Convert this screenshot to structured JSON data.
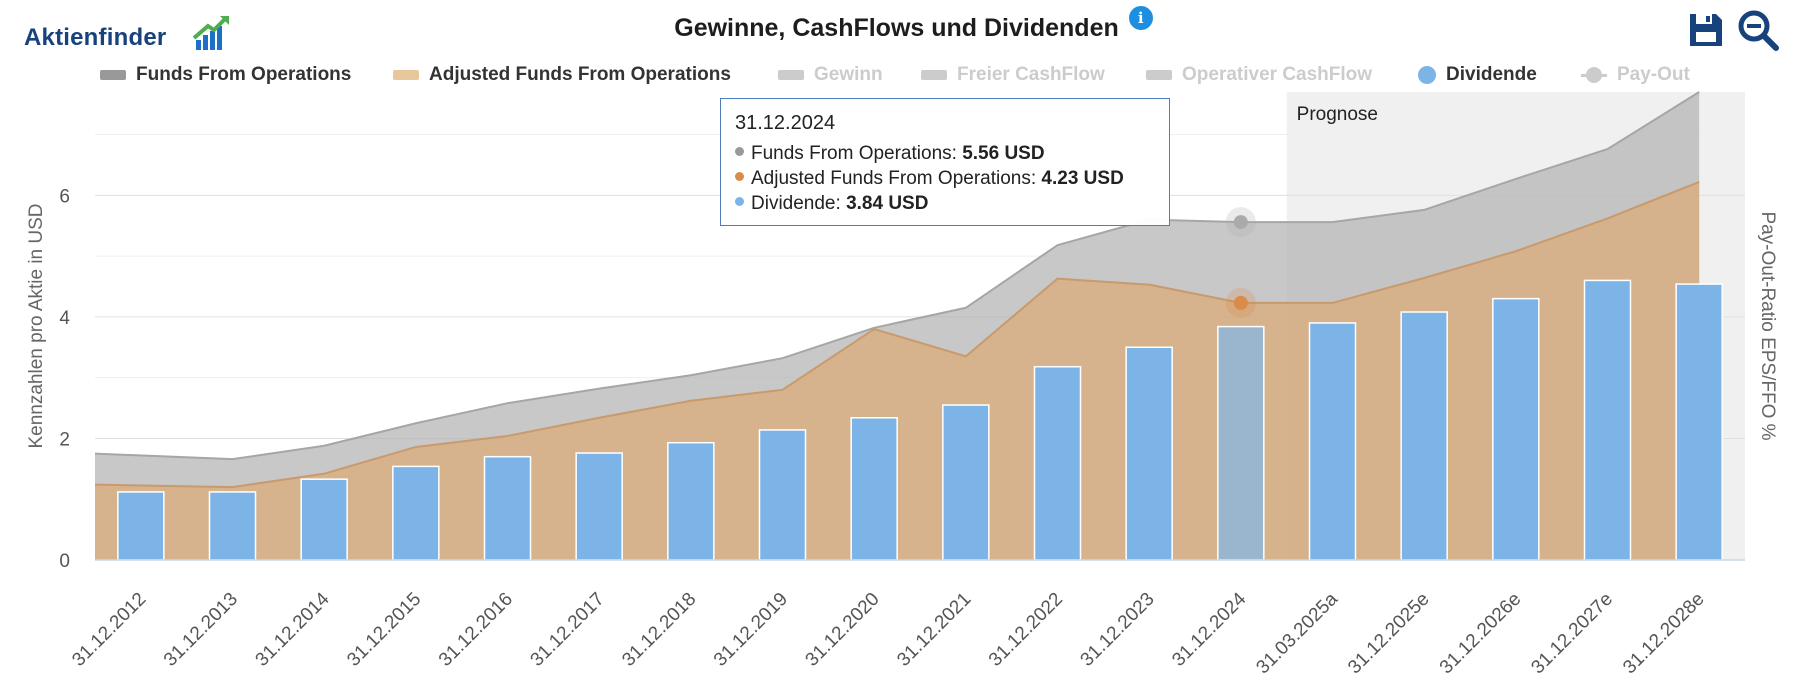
{
  "brand": {
    "name": "Aktienfinder"
  },
  "header": {
    "title": "Gewinne, CashFlows und Dividenden"
  },
  "toolbar": {
    "save_icon": "save-icon",
    "zoom_icon": "zoom-out-icon",
    "info_icon": "info-icon"
  },
  "legend": [
    {
      "label": "Funds From Operations",
      "symbol": "area",
      "color": "#999999",
      "active": true
    },
    {
      "label": "Adjusted Funds From Operations",
      "symbol": "area",
      "color": "#e9c79d",
      "active": true
    },
    {
      "label": "Gewinn",
      "symbol": "area",
      "color": "#cccccc",
      "active": false
    },
    {
      "label": "Freier CashFlow",
      "symbol": "area",
      "color": "#cccccc",
      "active": false
    },
    {
      "label": "Operativer CashFlow",
      "symbol": "area",
      "color": "#cccccc",
      "active": false
    },
    {
      "label": "Dividende",
      "symbol": "dot",
      "color": "#7cb4e8",
      "active": true
    },
    {
      "label": "Pay-Out",
      "symbol": "line",
      "color": "#cccccc",
      "active": false
    }
  ],
  "tooltip": {
    "date": "31.12.2024",
    "rows": [
      {
        "label": "Funds From Operations:",
        "value": "5.56 USD",
        "color": "#999999"
      },
      {
        "label": "Adjusted Funds From Operations:",
        "value": "4.23 USD",
        "color": "#d98b4a"
      },
      {
        "label": "Dividende:",
        "value": "3.84 USD",
        "color": "#7cb4e8"
      }
    ]
  },
  "chart_data": {
    "type": "bar",
    "categories": [
      "31.12.2012",
      "31.12.2013",
      "31.12.2014",
      "31.12.2015",
      "31.12.2016",
      "31.12.2017",
      "31.12.2018",
      "31.12.2019",
      "31.12.2020",
      "31.12.2021",
      "31.12.2022",
      "31.12.2023",
      "31.12.2024",
      "31.03.2025a",
      "31.12.2025e",
      "31.12.2026e",
      "31.12.2027e",
      "31.12.2028e"
    ],
    "series": [
      {
        "name": "Funds From Operations",
        "type": "area",
        "color": "#b6b6b6",
        "values": [
          1.75,
          1.66,
          1.88,
          2.25,
          2.58,
          2.82,
          3.04,
          3.32,
          3.82,
          4.15,
          5.18,
          5.6,
          5.56,
          5.56,
          5.76,
          6.27,
          6.76,
          7.7
        ]
      },
      {
        "name": "Adjusted Funds From Operations",
        "type": "area",
        "color": "#d8ae82",
        "values": [
          1.24,
          1.2,
          1.42,
          1.86,
          2.04,
          2.34,
          2.62,
          2.8,
          3.8,
          3.35,
          4.63,
          4.53,
          4.23,
          4.23,
          4.64,
          5.08,
          5.62,
          6.22
        ]
      },
      {
        "name": "Dividende",
        "type": "bar",
        "color": "#7cb4e8",
        "values": [
          1.12,
          1.12,
          1.33,
          1.54,
          1.7,
          1.76,
          1.93,
          2.14,
          2.34,
          2.55,
          3.18,
          3.5,
          3.84,
          3.9,
          4.08,
          4.3,
          4.6,
          4.54
        ]
      }
    ],
    "ylabel": "Kennzahlen pro Aktie in USD",
    "y2label": "Pay-Out-Ratio EPS/FFO %",
    "ylim": [
      0,
      7.7
    ],
    "yticks": [
      0,
      2,
      4,
      6
    ],
    "grid": true,
    "forecast_label": "Prognose",
    "forecast_start": "31.03.2025a",
    "highlighted": "31.12.2024",
    "legend_position": "top"
  }
}
